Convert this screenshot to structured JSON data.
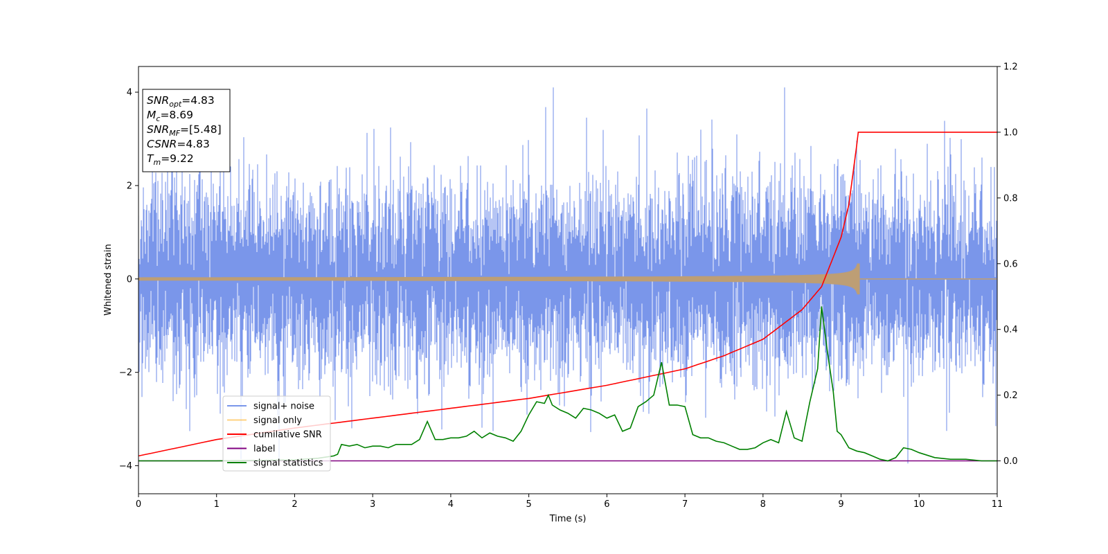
{
  "chart_data": {
    "type": "line",
    "title": "",
    "xlabel": "Time (s)",
    "ylabel": "Whitened strain",
    "xlim": [
      0,
      11
    ],
    "ylim_left": [
      -4.6,
      4.55
    ],
    "ylim_right": [
      -0.1,
      1.2
    ],
    "x_ticks": [
      "0",
      "1",
      "2",
      "3",
      "4",
      "5",
      "6",
      "7",
      "8",
      "9",
      "10",
      "11"
    ],
    "y_ticks_left": [
      "−4",
      "−2",
      "0",
      "2",
      "4"
    ],
    "y_ticks_right": [
      "0.0",
      "0.2",
      "0.4",
      "0.6",
      "0.8",
      "1.0",
      "1.2"
    ],
    "grid": false,
    "legend_placement": "lower-left",
    "info_box": {
      "lines": [
        {
          "sym": "SNR",
          "sub": "opt",
          "val": "=4.83"
        },
        {
          "sym": "M",
          "sub": "c",
          "val": "=8.69"
        },
        {
          "sym": "SNR",
          "sub": "MF",
          "val": "=[5.48]"
        },
        {
          "sym": "CSNR",
          "sub": "",
          "val": "=4.83"
        },
        {
          "sym": "T",
          "sub": "m",
          "val": "=9.22"
        }
      ]
    },
    "series": [
      {
        "name": "signal+ noise",
        "axis": "left",
        "color": "#4169e1",
        "alpha": 0.7,
        "description_values": {
          "mean": 0,
          "std": 0.95,
          "min": -4.0,
          "max": 4.15,
          "sampling": "dense"
        }
      },
      {
        "name": "signal only",
        "axis": "left",
        "color": "#ffa500",
        "alpha": 0.5,
        "chirp": {
          "merger_time": 9.22,
          "start_amplitude": 0.03,
          "peak_amplitude": 0.65
        }
      },
      {
        "name": "cumilative SNR",
        "axis": "right",
        "color": "#ff0000",
        "x": [
          0,
          1,
          2,
          3,
          4,
          5,
          6,
          7,
          7.5,
          8,
          8.5,
          8.75,
          9,
          9.1,
          9.2,
          9.22,
          11
        ],
        "y": [
          0.015,
          0.065,
          0.1,
          0.13,
          0.16,
          0.19,
          0.23,
          0.28,
          0.32,
          0.37,
          0.46,
          0.53,
          0.68,
          0.78,
          0.96,
          1.0,
          1.0
        ]
      },
      {
        "name": "label",
        "axis": "right",
        "color": "#800080",
        "x": [
          0,
          11
        ],
        "y": [
          0,
          0
        ]
      },
      {
        "name": "signal statistics",
        "axis": "right",
        "color": "#008000",
        "x": [
          0,
          1,
          2,
          2.3,
          2.5,
          2.55,
          2.6,
          2.7,
          2.8,
          2.9,
          3.0,
          3.1,
          3.2,
          3.3,
          3.4,
          3.5,
          3.6,
          3.7,
          3.8,
          3.9,
          4.0,
          4.1,
          4.2,
          4.3,
          4.4,
          4.5,
          4.6,
          4.7,
          4.8,
          4.9,
          5.0,
          5.1,
          5.2,
          5.25,
          5.3,
          5.4,
          5.5,
          5.6,
          5.7,
          5.8,
          5.9,
          6.0,
          6.1,
          6.2,
          6.3,
          6.4,
          6.5,
          6.6,
          6.7,
          6.8,
          6.9,
          7.0,
          7.1,
          7.2,
          7.3,
          7.4,
          7.5,
          7.6,
          7.7,
          7.8,
          7.9,
          8.0,
          8.1,
          8.2,
          8.3,
          8.35,
          8.4,
          8.5,
          8.55,
          8.6,
          8.7,
          8.75,
          8.82,
          8.9,
          8.95,
          9.0,
          9.1,
          9.2,
          9.3,
          9.4,
          9.5,
          9.6,
          9.7,
          9.8,
          9.9,
          10.0,
          10.2,
          10.4,
          10.6,
          10.8,
          11.0
        ],
        "y": [
          0.0,
          0.0,
          0.003,
          0.008,
          0.015,
          0.02,
          0.05,
          0.045,
          0.05,
          0.04,
          0.045,
          0.045,
          0.04,
          0.05,
          0.05,
          0.05,
          0.065,
          0.12,
          0.065,
          0.065,
          0.07,
          0.07,
          0.075,
          0.09,
          0.07,
          0.085,
          0.075,
          0.07,
          0.06,
          0.09,
          0.14,
          0.18,
          0.175,
          0.2,
          0.17,
          0.155,
          0.145,
          0.13,
          0.16,
          0.155,
          0.145,
          0.13,
          0.14,
          0.09,
          0.1,
          0.165,
          0.18,
          0.2,
          0.3,
          0.17,
          0.17,
          0.165,
          0.08,
          0.07,
          0.07,
          0.06,
          0.055,
          0.045,
          0.035,
          0.035,
          0.04,
          0.055,
          0.065,
          0.055,
          0.15,
          0.11,
          0.07,
          0.06,
          0.12,
          0.18,
          0.28,
          0.47,
          0.34,
          0.21,
          0.09,
          0.08,
          0.04,
          0.03,
          0.025,
          0.015,
          0.005,
          0.0,
          0.01,
          0.04,
          0.035,
          0.025,
          0.01,
          0.005,
          0.005,
          0.0,
          0.0
        ]
      }
    ]
  }
}
